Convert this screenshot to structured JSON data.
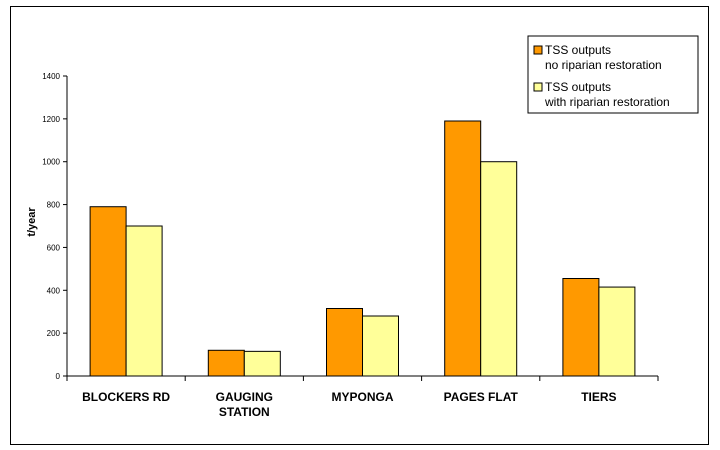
{
  "chart_data": {
    "type": "bar",
    "title": "",
    "xlabel": "",
    "ylabel": "t/year",
    "ylim": [
      0,
      1400
    ],
    "yticks": [
      0,
      200,
      400,
      600,
      800,
      1000,
      1200,
      1400
    ],
    "grid": false,
    "legend_position": "top-right",
    "categories": [
      [
        "BLOCKERS RD"
      ],
      [
        "GAUGING",
        "STATION"
      ],
      [
        "MYPONGA"
      ],
      [
        "PAGES FLAT"
      ],
      [
        "TIERS"
      ]
    ],
    "series": [
      {
        "name": [
          "TSS outputs",
          "no riparian restoration"
        ],
        "color": "#FF9900",
        "values": [
          790,
          120,
          315,
          1190,
          455
        ]
      },
      {
        "name": [
          "TSS outputs",
          "with riparian restoration"
        ],
        "color": "#FFFF99",
        "values": [
          700,
          115,
          280,
          1000,
          415
        ]
      }
    ]
  }
}
